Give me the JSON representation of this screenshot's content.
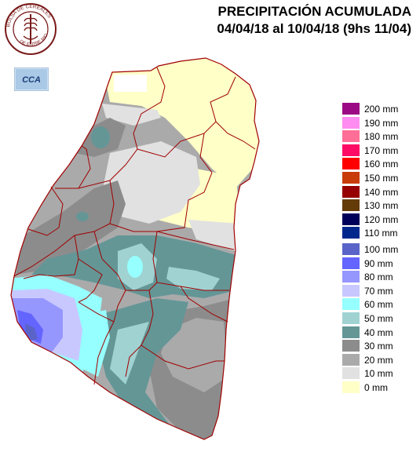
{
  "header": {
    "title_line1": "PRECIPITACIÓN ACUMULADA",
    "title_line2": "04/04/18 al 10/04/18 (9hs 11/04)"
  },
  "logos": {
    "seal_text": "BOLSA DE CEREALES DE ENTRE RIOS",
    "cca_text": "CCA"
  },
  "legend": [
    {
      "label": "200 mm",
      "color": "#9b0a84"
    },
    {
      "label": "190 mm",
      "color": "#ff8cf0"
    },
    {
      "label": "180 mm",
      "color": "#ff6e96"
    },
    {
      "label": "170 mm",
      "color": "#ff0a64"
    },
    {
      "label": "160 mm",
      "color": "#ff0000"
    },
    {
      "label": "150 mm",
      "color": "#c83c0a"
    },
    {
      "label": "140 mm",
      "color": "#960000"
    },
    {
      "label": "130 mm",
      "color": "#643c0a"
    },
    {
      "label": "120 mm",
      "color": "#00005a"
    },
    {
      "label": "110 mm",
      "color": "#00288c"
    },
    {
      "label": "100 mm",
      "color": "#5a64c8"
    },
    {
      "label": "90 mm",
      "color": "#6464ff"
    },
    {
      "label": "80 mm",
      "color": "#9696ff"
    },
    {
      "label": "70 mm",
      "color": "#c8c8ff"
    },
    {
      "label": "60 mm",
      "color": "#96ffff"
    },
    {
      "label": "50 mm",
      "color": "#a0d2d2"
    },
    {
      "label": "40 mm",
      "color": "#649696"
    },
    {
      "label": "30 mm",
      "color": "#8c8c8c"
    },
    {
      "label": "20 mm",
      "color": "#aaaaaa"
    },
    {
      "label": "10 mm",
      "color": "#e1e1e1"
    },
    {
      "label": "0 mm",
      "color": "#ffffc8"
    }
  ],
  "colors": {
    "border": "#a00000",
    "background": "#ffffff"
  }
}
